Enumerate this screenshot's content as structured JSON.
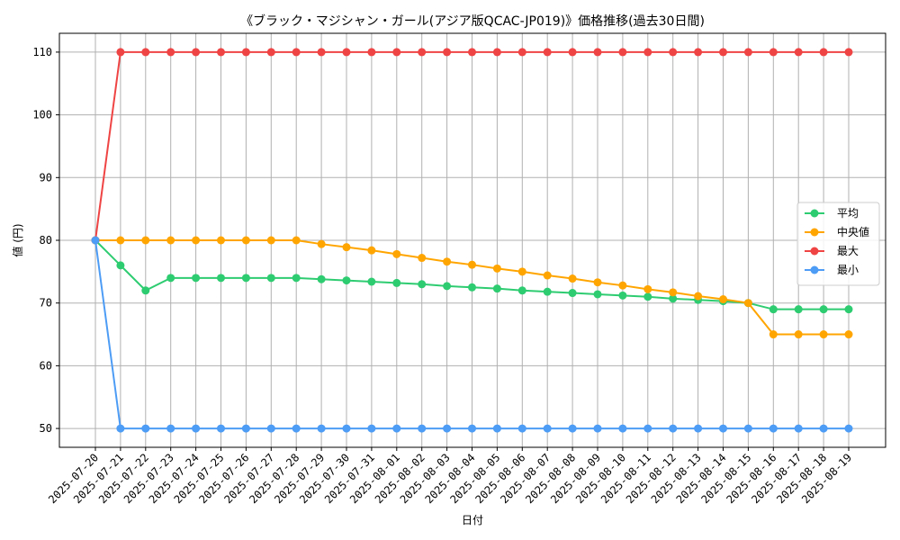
{
  "chart_data": {
    "type": "line",
    "title": "《ブラック・マジシャン・ガール(アジア版QCAC-JP019)》価格推移(過去30日間)",
    "xlabel": "日付",
    "ylabel": "値 (円)",
    "ylim": [
      47,
      113
    ],
    "yticks": [
      50,
      60,
      70,
      80,
      90,
      100,
      110
    ],
    "grid": true,
    "legend_position": "center-right",
    "categories": [
      "2025-07-20",
      "2025-07-21",
      "2025-07-22",
      "2025-07-23",
      "2025-07-24",
      "2025-07-25",
      "2025-07-26",
      "2025-07-27",
      "2025-07-28",
      "2025-07-29",
      "2025-07-30",
      "2025-07-31",
      "2025-08-01",
      "2025-08-02",
      "2025-08-03",
      "2025-08-04",
      "2025-08-05",
      "2025-08-06",
      "2025-08-07",
      "2025-08-08",
      "2025-08-09",
      "2025-08-10",
      "2025-08-11",
      "2025-08-12",
      "2025-08-13",
      "2025-08-14",
      "2025-08-15",
      "2025-08-16",
      "2025-08-17",
      "2025-08-18",
      "2025-08-19"
    ],
    "series": [
      {
        "name": "平均",
        "color": "#2ecc71",
        "values": [
          80,
          76,
          72,
          74,
          74,
          74,
          74,
          74,
          74,
          73.8,
          73.6,
          73.4,
          73.2,
          73,
          72.7,
          72.5,
          72.3,
          72,
          71.8,
          71.6,
          71.4,
          71.2,
          71,
          70.7,
          70.5,
          70.3,
          70,
          69,
          69,
          69,
          69
        ]
      },
      {
        "name": "中央値",
        "color": "#ffa500",
        "values": [
          80,
          80,
          80,
          80,
          80,
          80,
          80,
          80,
          80,
          79.4,
          78.9,
          78.4,
          77.8,
          77.2,
          76.6,
          76.1,
          75.5,
          75,
          74.4,
          73.9,
          73.3,
          72.8,
          72.2,
          71.7,
          71.1,
          70.6,
          70,
          65,
          65,
          65,
          65
        ]
      },
      {
        "name": "最大",
        "color": "#ef4444",
        "values": [
          80,
          110,
          110,
          110,
          110,
          110,
          110,
          110,
          110,
          110,
          110,
          110,
          110,
          110,
          110,
          110,
          110,
          110,
          110,
          110,
          110,
          110,
          110,
          110,
          110,
          110,
          110,
          110,
          110,
          110,
          110
        ]
      },
      {
        "name": "最小",
        "color": "#4d9cf5",
        "values": [
          80,
          50,
          50,
          50,
          50,
          50,
          50,
          50,
          50,
          50,
          50,
          50,
          50,
          50,
          50,
          50,
          50,
          50,
          50,
          50,
          50,
          50,
          50,
          50,
          50,
          50,
          50,
          50,
          50,
          50,
          50
        ]
      }
    ]
  }
}
